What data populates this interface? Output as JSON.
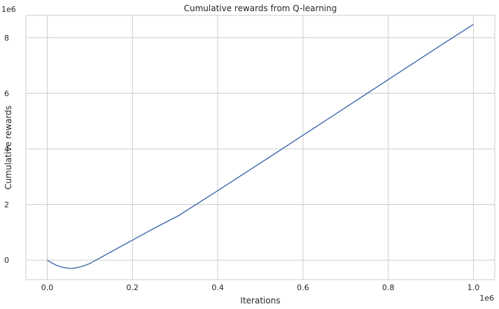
{
  "chart_data": {
    "type": "line",
    "title": "Cumulative rewards from Q-learning",
    "xlabel": "Iterations",
    "ylabel": "Cumulative rewards",
    "x_offset_label": "1e6",
    "y_offset_label": "1e6",
    "xlim": [
      -0.05,
      1.05
    ],
    "ylim": [
      -0.7,
      8.8
    ],
    "x_ticks": [
      0.0,
      0.2,
      0.4,
      0.6,
      0.8,
      1.0
    ],
    "x_tick_labels": [
      "0.0",
      "0.2",
      "0.4",
      "0.6",
      "0.8",
      "1.0"
    ],
    "y_ticks": [
      0,
      2,
      4,
      6,
      8
    ],
    "y_tick_labels": [
      "0",
      "2",
      "4",
      "6",
      "8"
    ],
    "grid": true,
    "line_color": "#4c72b0",
    "series": [
      {
        "x": [
          0.0,
          0.01,
          0.02,
          0.03,
          0.04,
          0.05,
          0.055,
          0.06,
          0.07,
          0.08,
          0.09,
          0.1,
          0.15,
          0.2,
          0.25,
          0.3,
          0.305,
          0.4,
          0.5,
          0.6,
          0.7,
          0.8,
          0.9,
          1.0
        ],
        "y": [
          0.0,
          -0.09,
          -0.17,
          -0.23,
          -0.27,
          -0.29,
          -0.295,
          -0.29,
          -0.27,
          -0.23,
          -0.18,
          -0.12,
          0.3,
          0.72,
          1.14,
          1.54,
          1.57,
          2.5,
          3.49,
          4.49,
          5.49,
          6.49,
          7.49,
          8.48
        ]
      }
    ]
  }
}
